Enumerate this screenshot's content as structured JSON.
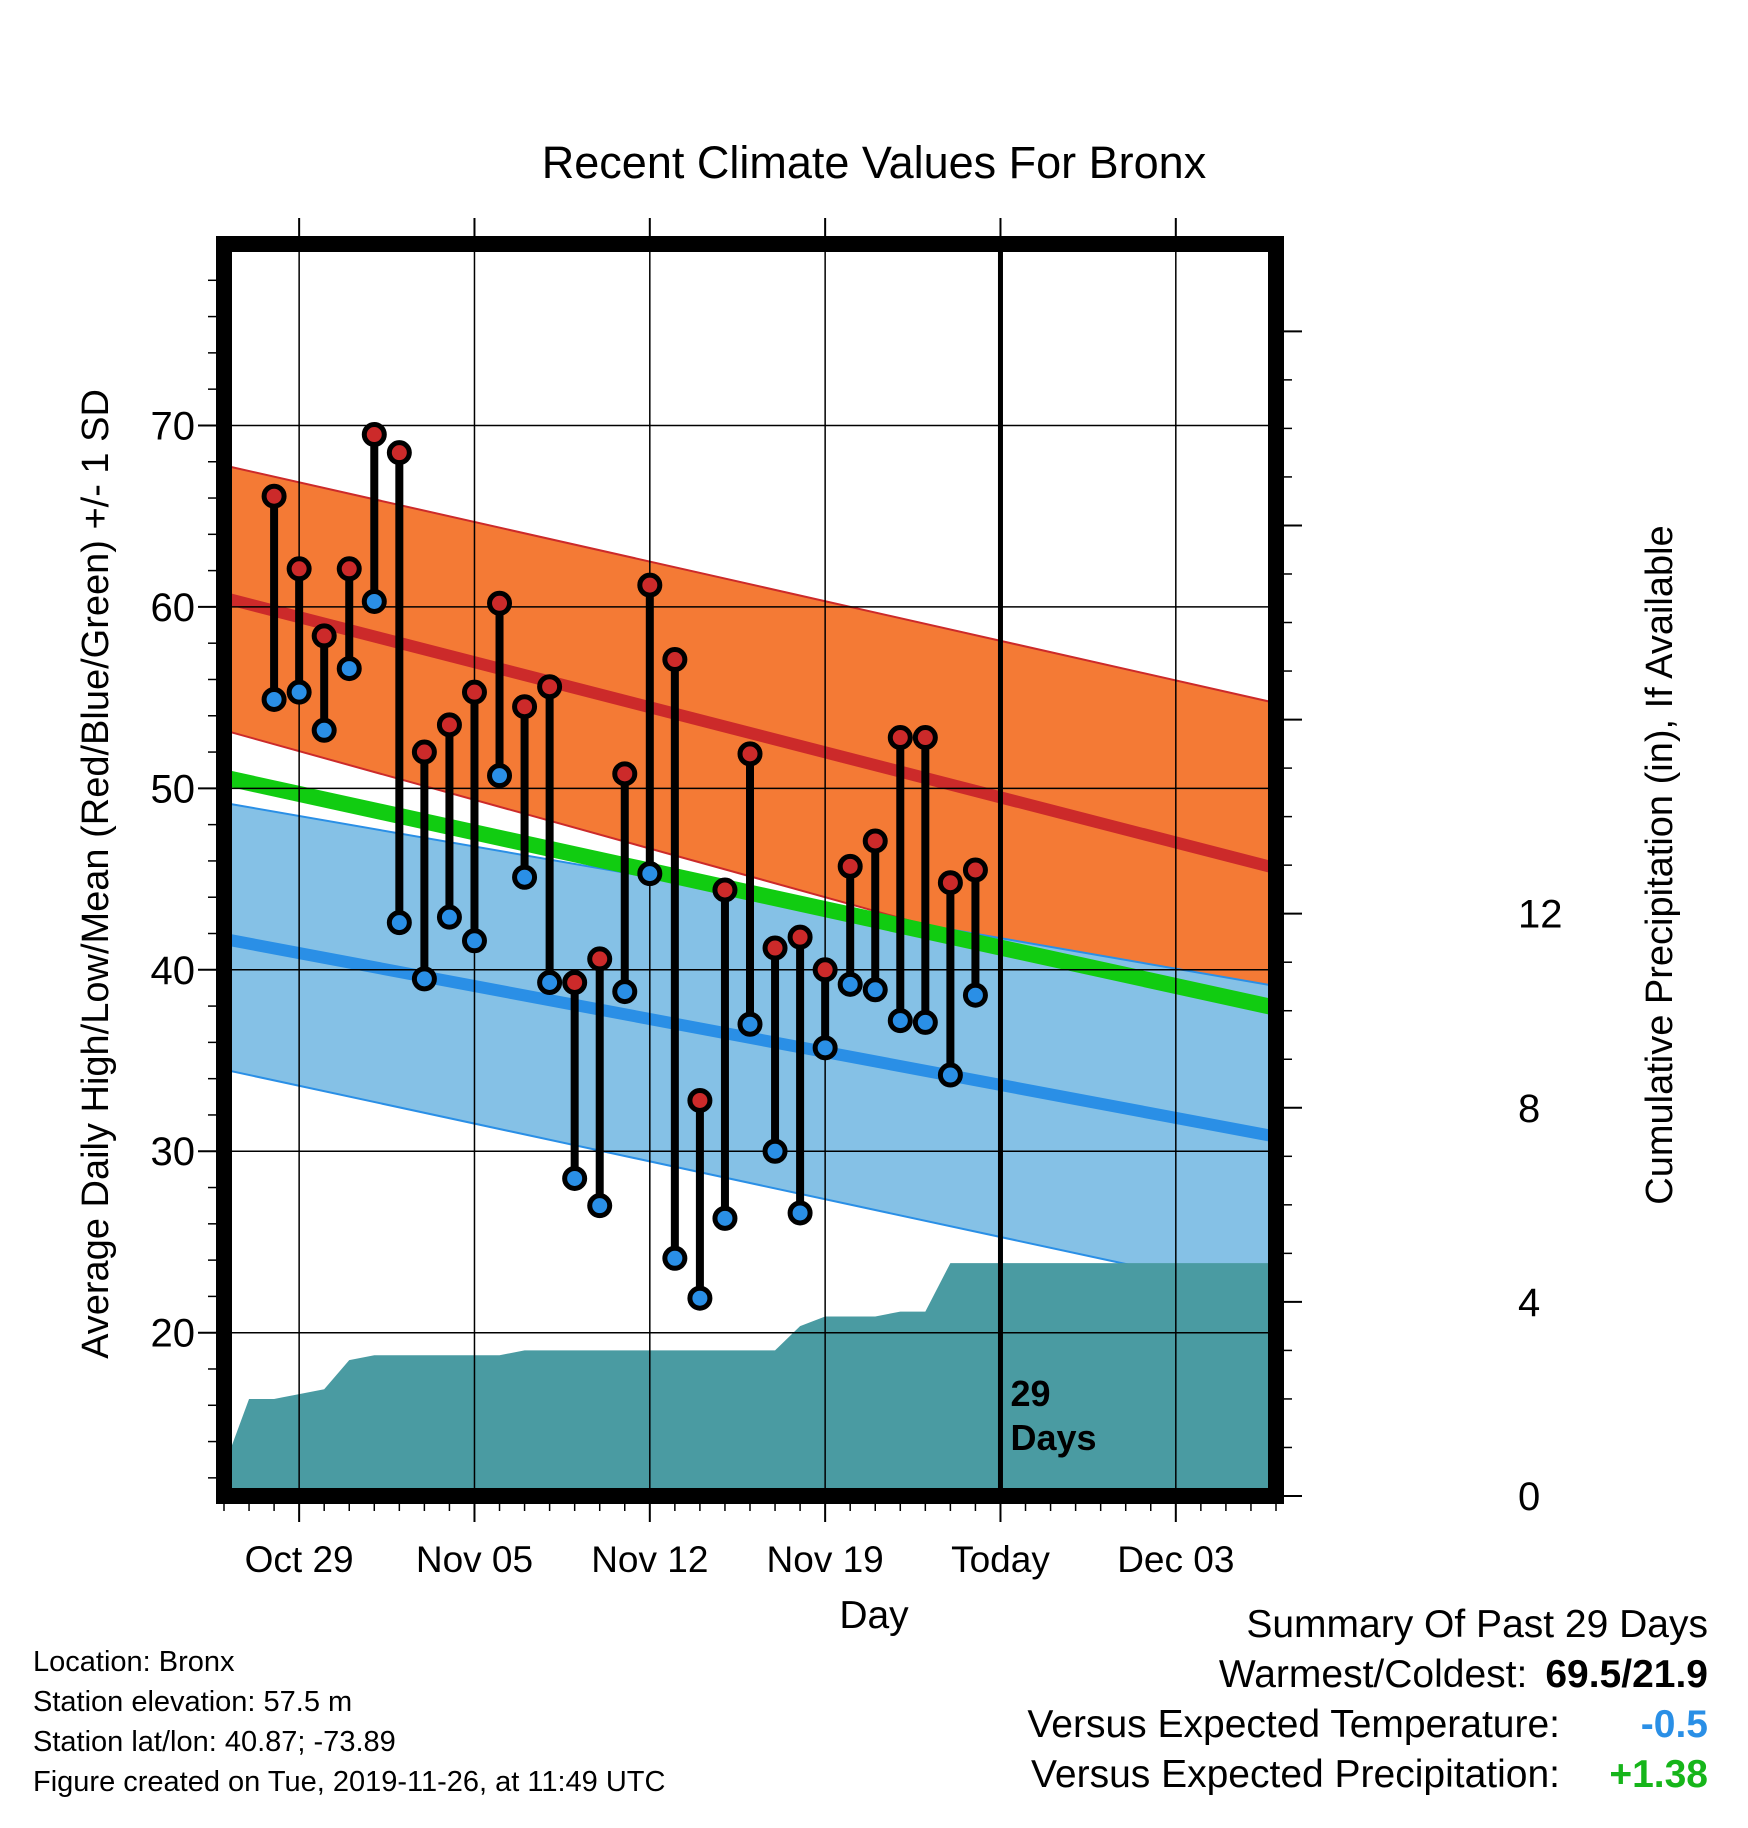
{
  "chart_data": {
    "type": "line",
    "title": "Recent Climate Values For Bronx",
    "xlabel": "Day",
    "ylabel_left": "Average Daily High/Low/Mean (Red/Blue/Green) +/- 1 SD",
    "ylabel_right": "Cumulative Precipitation (in), If Available",
    "xlim": [
      "2019-10-26",
      "2019-12-07"
    ],
    "ylim_left": [
      11,
      80
    ],
    "ylim_right": [
      0,
      25.8
    ],
    "x_tick_labels": [
      {
        "date": "2019-10-29",
        "label": "Oct 29"
      },
      {
        "date": "2019-11-05",
        "label": "Nov 05"
      },
      {
        "date": "2019-11-12",
        "label": "Nov 12"
      },
      {
        "date": "2019-11-19",
        "label": "Nov 19"
      },
      {
        "date": "2019-11-26",
        "label": "Today"
      },
      {
        "date": "2019-12-03",
        "label": "Dec 03"
      }
    ],
    "y_ticks_left": [
      20,
      30,
      40,
      50,
      60,
      70
    ],
    "y_ticks_right": [
      0,
      4,
      8,
      12
    ],
    "grid": true,
    "today": "2019-11-26",
    "today_label": [
      "29",
      "Days"
    ],
    "normals": {
      "high_mean": {
        "start": 60.5,
        "end": 45.6
      },
      "high_band": {
        "start_upper": 67.8,
        "start_lower": 53.2,
        "end_upper": 54.7,
        "end_lower": 37.1
      },
      "low_mean": {
        "start": 41.7,
        "end": 30.8
      },
      "low_band": {
        "start_upper": 49.2,
        "start_lower": 34.5,
        "end_upper": 39.1,
        "end_lower": 22.0
      },
      "mean_line": {
        "start": 50.6,
        "end": 37.9
      }
    },
    "series": [
      {
        "name": "High",
        "color": "#cc2a2a",
        "values": [
          66.1,
          62.1,
          58.4,
          62.1,
          69.5,
          68.5,
          52.0,
          53.5,
          55.3,
          60.2,
          54.5,
          55.6,
          39.3,
          40.6,
          50.8,
          61.2,
          57.1,
          32.8,
          44.4,
          51.9,
          41.2,
          41.8,
          40.0,
          45.7,
          47.1,
          52.8,
          52.8,
          44.8,
          45.5
        ]
      },
      {
        "name": "Low",
        "color": "#2a8fe6",
        "values": [
          54.9,
          55.3,
          53.2,
          56.6,
          60.3,
          42.6,
          39.5,
          42.9,
          41.6,
          50.7,
          45.1,
          39.3,
          28.5,
          27.0,
          38.8,
          45.3,
          24.1,
          21.9,
          26.3,
          37.0,
          30.0,
          26.6,
          35.7,
          39.2,
          38.9,
          37.2,
          37.1,
          34.2,
          38.6
        ]
      },
      {
        "name": "Cumulative Precipitation",
        "color": "#4a9ba2",
        "dates": [
          "2019-10-26",
          "2019-10-27",
          "2019-10-28",
          "2019-10-29",
          "2019-10-30",
          "2019-10-31",
          "2019-11-01",
          "2019-11-02",
          "2019-11-03",
          "2019-11-04",
          "2019-11-05",
          "2019-11-06",
          "2019-11-07",
          "2019-11-08",
          "2019-11-09",
          "2019-11-10",
          "2019-11-11",
          "2019-11-12",
          "2019-11-13",
          "2019-11-14",
          "2019-11-15",
          "2019-11-16",
          "2019-11-17",
          "2019-11-18",
          "2019-11-19",
          "2019-11-20",
          "2019-11-21",
          "2019-11-22",
          "2019-11-23",
          "2019-11-24",
          "2019-12-07"
        ],
        "values": [
          0.6,
          2.0,
          2.0,
          2.1,
          2.2,
          2.8,
          2.9,
          2.9,
          2.9,
          2.9,
          2.9,
          2.9,
          3.0,
          3.0,
          3.0,
          3.0,
          3.0,
          3.0,
          3.0,
          3.0,
          3.0,
          3.0,
          3.0,
          3.5,
          3.7,
          3.7,
          3.7,
          3.8,
          3.8,
          4.8,
          4.8
        ]
      }
    ],
    "first_obs_date": "2019-10-28"
  },
  "info": {
    "location": "Location: Bronx",
    "elevation": "Station elevation: 57.5 m",
    "latlon": "Station lat/lon: 40.87; -73.89",
    "created": "Figure created on Tue, 2019-11-26, at 11:49 UTC"
  },
  "summary": {
    "heading": "Summary Of Past 29 Days",
    "warm_cold_label": "Warmest/Coldest:",
    "warm_cold_value": "69.5/21.9",
    "temp_label": "Versus Expected Temperature:",
    "temp_value": "-0.5",
    "precip_label": "Versus Expected Precipitation:",
    "precip_value": "+1.38"
  },
  "colors": {
    "high_band": "#f47a35",
    "high_line": "#cc2a2a",
    "low_band": "#85c1e6",
    "low_line": "#2a8fe6",
    "mean_line": "#11cc11",
    "precip_fill": "#4a9ba2"
  }
}
